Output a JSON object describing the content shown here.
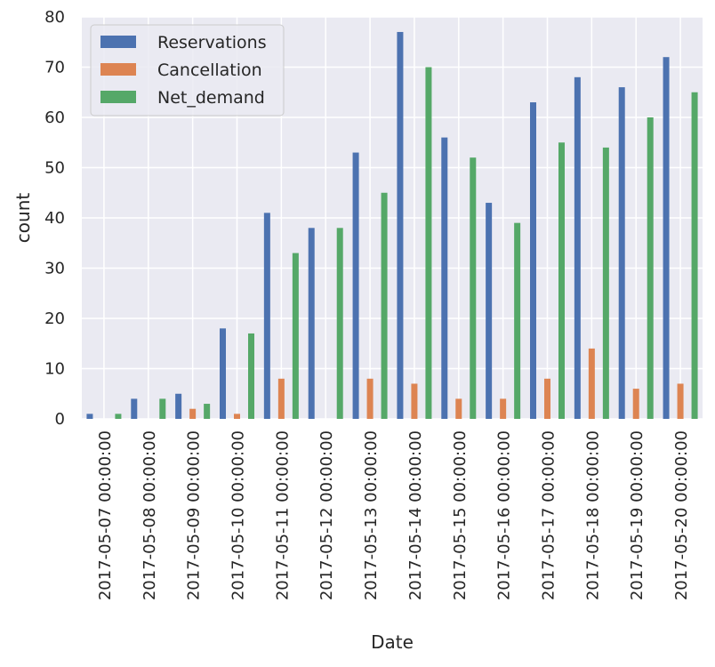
{
  "chart_data": {
    "type": "bar",
    "xlabel": "Date",
    "ylabel": "count",
    "ylim": [
      0,
      80
    ],
    "yticks": [
      0,
      10,
      20,
      30,
      40,
      50,
      60,
      70,
      80
    ],
    "grid": true,
    "legend_position": "top-left",
    "categories": [
      "2017-05-07 00:00:00",
      "2017-05-08 00:00:00",
      "2017-05-09 00:00:00",
      "2017-05-10 00:00:00",
      "2017-05-11 00:00:00",
      "2017-05-12 00:00:00",
      "2017-05-13 00:00:00",
      "2017-05-14 00:00:00",
      "2017-05-15 00:00:00",
      "2017-05-16 00:00:00",
      "2017-05-17 00:00:00",
      "2017-05-18 00:00:00",
      "2017-05-19 00:00:00",
      "2017-05-20 00:00:00"
    ],
    "series": [
      {
        "name": "Reservations",
        "color": "#4c72b0",
        "values": [
          1,
          4,
          5,
          18,
          41,
          38,
          53,
          77,
          56,
          43,
          63,
          68,
          66,
          72
        ]
      },
      {
        "name": "Cancellation",
        "color": "#dd8452",
        "values": [
          0,
          0,
          2,
          1,
          8,
          0,
          8,
          7,
          4,
          4,
          8,
          14,
          6,
          7
        ]
      },
      {
        "name": "Net_demand",
        "color": "#55a868",
        "values": [
          1,
          4,
          3,
          17,
          33,
          38,
          45,
          70,
          52,
          39,
          55,
          54,
          60,
          65
        ]
      }
    ]
  },
  "colors": {
    "plot_background": "#eaeaf2",
    "grid": "#ffffff",
    "text": "#262626"
  }
}
